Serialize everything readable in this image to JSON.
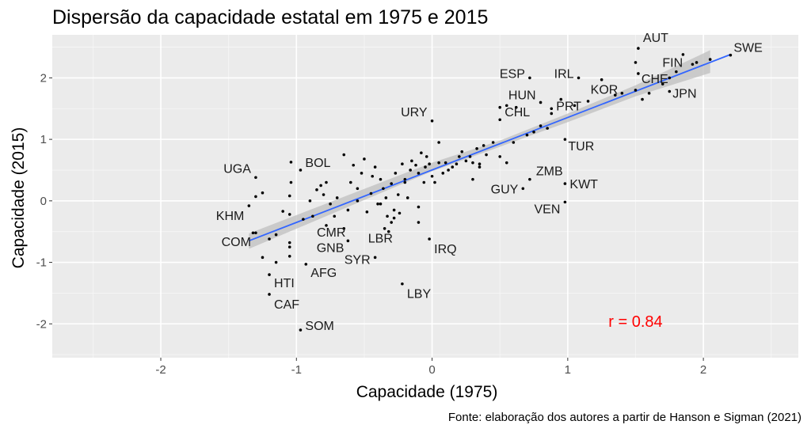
{
  "chart_data": {
    "type": "scatter",
    "title": "Dispersão da capacidade estatal em 1975 e 2015",
    "xlabel": "Capacidade (1975)",
    "ylabel": "Capacidade (2015)",
    "caption": "Fonte: elaboração dos autores a partir de Hanson e Sigman (2021)",
    "xlim": [
      -2.8,
      2.7
    ],
    "ylim": [
      -2.55,
      2.7
    ],
    "xticks": [
      -2,
      -1,
      0,
      1,
      2
    ],
    "yticks": [
      -2,
      -1,
      0,
      1,
      2
    ],
    "grid": true,
    "background": "#ebebeb",
    "point_color": "#000000",
    "fit": {
      "method": "linear",
      "color": "#3366ff",
      "band_color": "#bfbfbf",
      "x_range": [
        -1.35,
        2.2
      ],
      "line": [
        [
          -1.35,
          -0.65
        ],
        [
          2.2,
          2.38
        ]
      ],
      "band_upper": [
        [
          -1.35,
          -0.53
        ],
        [
          0.0,
          0.62
        ],
        [
          0.5,
          0.98
        ],
        [
          1.0,
          1.42
        ],
        [
          1.5,
          1.88
        ],
        [
          2.05,
          2.45
        ]
      ],
      "band_lower": [
        [
          -1.35,
          -0.78
        ],
        [
          0.0,
          0.48
        ],
        [
          0.5,
          0.88
        ],
        [
          1.0,
          1.28
        ],
        [
          1.5,
          1.7
        ],
        [
          2.05,
          2.08
        ]
      ]
    },
    "annotation": {
      "text": "r = 0.84",
      "x": 1.5,
      "y": -2.05,
      "color": "#ff0000"
    },
    "labeled_points": [
      {
        "label": "AUT",
        "x": 1.52,
        "y": 2.48
      },
      {
        "label": "SWE",
        "x": 2.2,
        "y": 2.37
      },
      {
        "label": "FIN",
        "x": 1.92,
        "y": 2.22
      },
      {
        "label": "CHE",
        "x": 1.52,
        "y": 2.07
      },
      {
        "label": "ESP",
        "x": 0.72,
        "y": 2.0
      },
      {
        "label": "IRL",
        "x": 1.08,
        "y": 2.0
      },
      {
        "label": "KOR",
        "x": 1.25,
        "y": 1.97
      },
      {
        "label": "JPN",
        "x": 1.75,
        "y": 1.78
      },
      {
        "label": "HUN",
        "x": 0.8,
        "y": 1.6
      },
      {
        "label": "PRT",
        "x": 0.88,
        "y": 1.42
      },
      {
        "label": "URY",
        "x": 0.0,
        "y": 1.3
      },
      {
        "label": "CHL",
        "x": 0.5,
        "y": 1.32
      },
      {
        "label": "TUR",
        "x": 0.98,
        "y": 1.0
      },
      {
        "label": "BOL",
        "x": -0.97,
        "y": 0.5
      },
      {
        "label": "UGA",
        "x": -1.3,
        "y": 0.38
      },
      {
        "label": "ZMB",
        "x": 0.72,
        "y": 0.35
      },
      {
        "label": "GUY",
        "x": 0.67,
        "y": 0.2
      },
      {
        "label": "KWT",
        "x": 0.98,
        "y": 0.28
      },
      {
        "label": "VEN",
        "x": 0.98,
        "y": -0.02
      },
      {
        "label": "KHM",
        "x": -1.35,
        "y": -0.08
      },
      {
        "label": "CMR",
        "x": -0.78,
        "y": -0.4
      },
      {
        "label": "LBR",
        "x": -0.32,
        "y": -0.5
      },
      {
        "label": "GNB",
        "x": -0.62,
        "y": -0.65
      },
      {
        "label": "IRQ",
        "x": -0.02,
        "y": -0.62
      },
      {
        "label": "COM",
        "x": -1.3,
        "y": -0.52
      },
      {
        "label": "SYR",
        "x": -0.42,
        "y": -0.92
      },
      {
        "label": "AFG",
        "x": -0.93,
        "y": -1.03
      },
      {
        "label": "HTI",
        "x": -1.2,
        "y": -1.2
      },
      {
        "label": "LBY",
        "x": -0.22,
        "y": -1.35
      },
      {
        "label": "CAF",
        "x": -1.2,
        "y": -1.52
      },
      {
        "label": "SOM",
        "x": -0.97,
        "y": -2.1
      }
    ],
    "points": [
      [
        -1.3,
        0.07
      ],
      [
        -1.32,
        -0.52
      ],
      [
        -1.25,
        0.13
      ],
      [
        -1.2,
        -0.62
      ],
      [
        -1.15,
        -0.55
      ],
      [
        -1.1,
        -0.17
      ],
      [
        -1.05,
        0.08
      ],
      [
        -1.05,
        -0.22
      ],
      [
        -1.05,
        -0.68
      ],
      [
        -1.05,
        -0.75
      ],
      [
        -1.04,
        0.3
      ],
      [
        -1.04,
        0.63
      ],
      [
        -1.25,
        -0.92
      ],
      [
        -1.15,
        -1.0
      ],
      [
        -1.05,
        -0.9
      ],
      [
        -0.95,
        -0.3
      ],
      [
        -0.9,
        0.0
      ],
      [
        -0.88,
        -0.25
      ],
      [
        -0.85,
        0.18
      ],
      [
        -0.82,
        0.25
      ],
      [
        -0.8,
        0.1
      ],
      [
        -0.78,
        0.3
      ],
      [
        -0.75,
        -0.05
      ],
      [
        -0.72,
        -0.25
      ],
      [
        -0.7,
        0.05
      ],
      [
        -0.65,
        0.75
      ],
      [
        -0.62,
        -0.15
      ],
      [
        -0.6,
        0.3
      ],
      [
        -0.58,
        0.58
      ],
      [
        -0.55,
        0.2
      ],
      [
        -0.52,
        0.45
      ],
      [
        -0.5,
        0.68
      ],
      [
        -0.48,
        -0.18
      ],
      [
        -0.45,
        0.12
      ],
      [
        -0.44,
        0.4
      ],
      [
        -0.42,
        0.55
      ],
      [
        -0.4,
        -0.05
      ],
      [
        -0.38,
        0.35
      ],
      [
        -0.36,
        0.2
      ],
      [
        -0.34,
        0.05
      ],
      [
        -0.33,
        -0.25
      ],
      [
        -0.3,
        0.28
      ],
      [
        -0.28,
        -0.15
      ],
      [
        -0.27,
        0.45
      ],
      [
        -0.25,
        0.1
      ],
      [
        -0.24,
        -0.2
      ],
      [
        -0.22,
        0.6
      ],
      [
        -0.2,
        0.35
      ],
      [
        -0.18,
        0.05
      ],
      [
        -0.16,
        0.5
      ],
      [
        -0.15,
        0.65
      ],
      [
        -0.12,
        0.58
      ],
      [
        -0.1,
        0.45
      ],
      [
        -0.1,
        -0.1
      ],
      [
        -0.08,
        0.78
      ],
      [
        -0.06,
        0.3
      ],
      [
        -0.05,
        0.55
      ],
      [
        -0.04,
        0.72
      ],
      [
        -0.02,
        0.6
      ],
      [
        0.0,
        0.4
      ],
      [
        0.02,
        0.3
      ],
      [
        0.05,
        0.62
      ],
      [
        0.05,
        0.95
      ],
      [
        0.08,
        0.45
      ],
      [
        0.1,
        0.62
      ],
      [
        0.12,
        0.5
      ],
      [
        0.15,
        0.55
      ],
      [
        0.18,
        0.6
      ],
      [
        0.2,
        0.72
      ],
      [
        0.22,
        0.8
      ],
      [
        0.25,
        0.65
      ],
      [
        0.28,
        0.72
      ],
      [
        0.3,
        0.62
      ],
      [
        0.33,
        0.85
      ],
      [
        0.35,
        0.6
      ],
      [
        0.38,
        0.9
      ],
      [
        0.4,
        0.75
      ],
      [
        0.45,
        0.95
      ],
      [
        0.5,
        0.72
      ],
      [
        0.5,
        1.52
      ],
      [
        0.55,
        0.62
      ],
      [
        0.55,
        1.55
      ],
      [
        0.6,
        0.95
      ],
      [
        0.62,
        1.52
      ],
      [
        0.7,
        1.07
      ],
      [
        0.75,
        1.12
      ],
      [
        0.8,
        1.22
      ],
      [
        0.85,
        1.18
      ],
      [
        0.88,
        1.5
      ],
      [
        0.95,
        1.65
      ],
      [
        1.05,
        1.55
      ],
      [
        1.15,
        1.62
      ],
      [
        1.35,
        1.72
      ],
      [
        1.4,
        1.75
      ],
      [
        1.5,
        1.8
      ],
      [
        1.55,
        1.65
      ],
      [
        1.6,
        1.75
      ],
      [
        1.7,
        1.9
      ],
      [
        1.75,
        2.0
      ],
      [
        1.8,
        2.1
      ],
      [
        1.85,
        2.38
      ],
      [
        1.95,
        2.25
      ],
      [
        2.05,
        2.3
      ],
      [
        1.5,
        2.25
      ],
      [
        -0.35,
        -0.45
      ],
      [
        -0.3,
        -0.35
      ],
      [
        -0.1,
        -0.35
      ],
      [
        0.3,
        0.35
      ],
      [
        -0.65,
        -0.45
      ],
      [
        -0.55,
        0.0
      ],
      [
        -0.28,
        -0.28
      ],
      [
        -0.38,
        -0.05
      ],
      [
        0.35,
        0.55
      ],
      [
        -0.2,
        0.3
      ]
    ]
  }
}
